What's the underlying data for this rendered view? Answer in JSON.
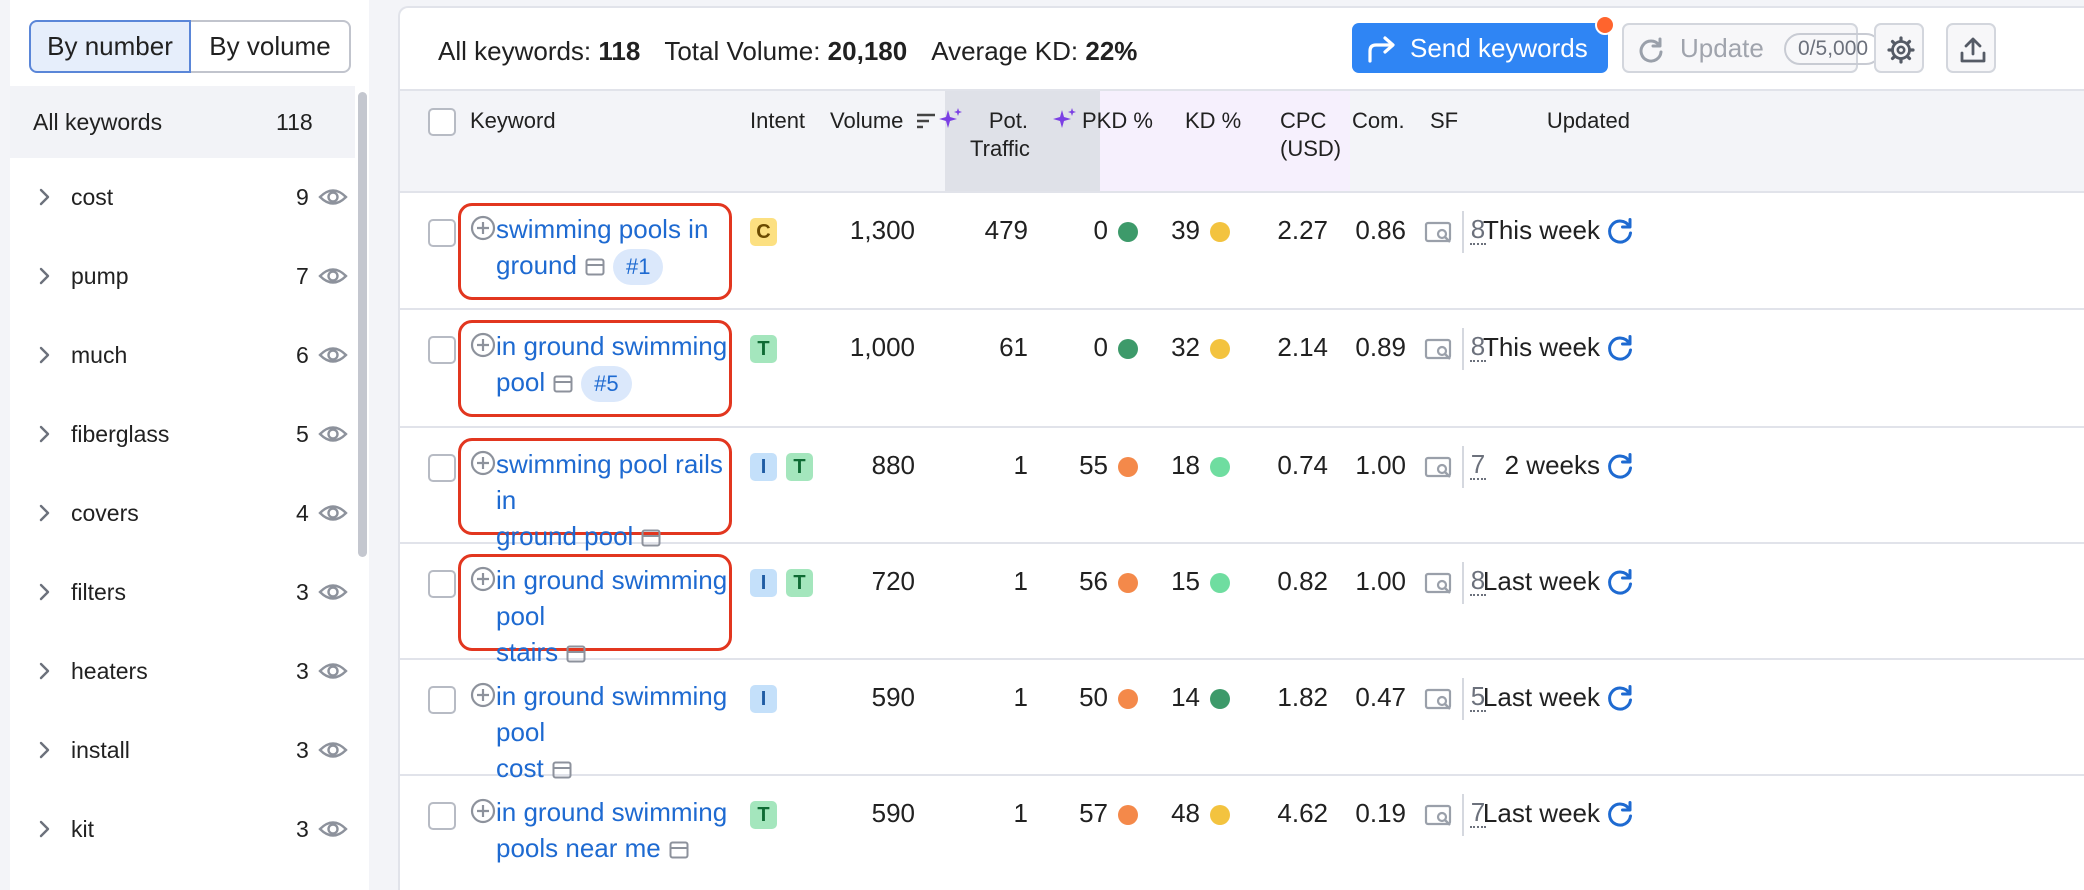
{
  "left_panel": {
    "seg_by_number": "By number",
    "seg_by_volume": "By volume",
    "all_label": "All keywords",
    "all_count": "118",
    "groups": [
      {
        "name": "cost",
        "count": "9"
      },
      {
        "name": "pump",
        "count": "7"
      },
      {
        "name": "much",
        "count": "6"
      },
      {
        "name": "fiberglass",
        "count": "5"
      },
      {
        "name": "covers",
        "count": "4"
      },
      {
        "name": "filters",
        "count": "3"
      },
      {
        "name": "heaters",
        "count": "3"
      },
      {
        "name": "install",
        "count": "3"
      },
      {
        "name": "kit",
        "count": "3"
      }
    ]
  },
  "summary": {
    "all_keywords_label": "All keywords:",
    "all_keywords_value": "118",
    "total_volume_label": "Total Volume:",
    "total_volume_value": "20,180",
    "avg_kd_label": "Average KD:",
    "avg_kd_value": "22%"
  },
  "toolbar": {
    "send_label": "Send keywords",
    "update_label": "Update",
    "update_quota": "0/5,000"
  },
  "colors": {
    "accent": "#2f85f4",
    "link": "#1e6ad1",
    "highlight": "#e2361f",
    "green_dark": "#3d9a6a",
    "yellow": "#f3c33f",
    "green_light": "#6fdda0",
    "orange": "#f4894a"
  },
  "table": {
    "headers": {
      "keyword": "Keyword",
      "intent": "Intent",
      "volume": "Volume",
      "pot_traffic_1": "Pot.",
      "pot_traffic_2": "Traffic",
      "pkd": "PKD %",
      "kd": "KD %",
      "cpc_1": "CPC",
      "cpc_2": "(USD)",
      "com": "Com.",
      "sf": "SF",
      "updated": "Updated"
    },
    "rows": [
      {
        "kw1": "swimming pools in",
        "kw2": "ground",
        "rank": "#1",
        "intents": [
          "C"
        ],
        "volume": "1,300",
        "pot": "479",
        "pkd": "0",
        "pkd_color": "green_dark",
        "kd": "39",
        "kd_color": "yellow",
        "cpc": "2.27",
        "com": "0.86",
        "sf": "8",
        "updated": "This week",
        "highlighted": true
      },
      {
        "kw1": "in ground swimming",
        "kw2": "pool",
        "rank": "#5",
        "intents": [
          "T"
        ],
        "volume": "1,000",
        "pot": "61",
        "pkd": "0",
        "pkd_color": "green_dark",
        "kd": "32",
        "kd_color": "yellow",
        "cpc": "2.14",
        "com": "0.89",
        "sf": "8",
        "updated": "This week",
        "highlighted": true
      },
      {
        "kw1": "swimming pool rails in",
        "kw2": "ground pool",
        "rank": "",
        "intents": [
          "I",
          "T"
        ],
        "volume": "880",
        "pot": "1",
        "pkd": "55",
        "pkd_color": "orange",
        "kd": "18",
        "kd_color": "green_light",
        "cpc": "0.74",
        "com": "1.00",
        "sf": "7",
        "updated": "2 weeks",
        "highlighted": true
      },
      {
        "kw1": "in ground swimming pool",
        "kw2": "stairs",
        "rank": "",
        "intents": [
          "I",
          "T"
        ],
        "volume": "720",
        "pot": "1",
        "pkd": "56",
        "pkd_color": "orange",
        "kd": "15",
        "kd_color": "green_light",
        "cpc": "0.82",
        "com": "1.00",
        "sf": "8",
        "updated": "Last week",
        "highlighted": true
      },
      {
        "kw1": "in ground swimming pool",
        "kw2": "cost",
        "rank": "",
        "intents": [
          "I"
        ],
        "volume": "590",
        "pot": "1",
        "pkd": "50",
        "pkd_color": "orange",
        "kd": "14",
        "kd_color": "green_dark",
        "cpc": "1.82",
        "com": "0.47",
        "sf": "5",
        "updated": "Last week",
        "highlighted": false
      },
      {
        "kw1": "in ground swimming",
        "kw2": "pools near me",
        "rank": "",
        "intents": [
          "T"
        ],
        "volume": "590",
        "pot": "1",
        "pkd": "57",
        "pkd_color": "orange",
        "kd": "48",
        "kd_color": "yellow",
        "cpc": "4.62",
        "com": "0.19",
        "sf": "7",
        "updated": "Last week",
        "highlighted": false
      }
    ]
  }
}
